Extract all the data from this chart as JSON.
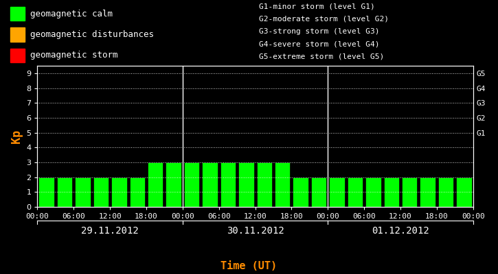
{
  "background_color": "#000000",
  "bar_color": "#00ff00",
  "bar_edge_color": "#000000",
  "text_color": "#ffffff",
  "ylabel_color": "#ff8c00",
  "xlabel_color": "#ff8c00",
  "day1_label": "29.11.2012",
  "day2_label": "30.11.2012",
  "day3_label": "01.12.2012",
  "xlabel": "Time (UT)",
  "ylabel": "Kp",
  "ylim": [
    0,
    9.5
  ],
  "yticks": [
    0,
    1,
    2,
    3,
    4,
    5,
    6,
    7,
    8,
    9
  ],
  "right_labels": [
    "G1",
    "G2",
    "G3",
    "G4",
    "G5"
  ],
  "right_label_yvals": [
    5,
    6,
    7,
    8,
    9
  ],
  "legend_items": [
    {
      "label": "geomagnetic calm",
      "color": "#00ff00"
    },
    {
      "label": "geomagnetic disturbances",
      "color": "#ffa500"
    },
    {
      "label": "geomagnetic storm",
      "color": "#ff0000"
    }
  ],
  "storm_legend": [
    "G1-minor storm (level G1)",
    "G2-moderate storm (level G2)",
    "G3-strong storm (level G3)",
    "G4-severe storm (level G4)",
    "G5-extreme storm (level G5)"
  ],
  "kp_values": [
    2,
    2,
    2,
    2,
    2,
    2,
    3,
    3,
    3,
    3,
    3,
    3,
    3,
    3,
    2,
    2,
    2,
    2,
    2,
    2,
    2,
    2,
    2,
    2
  ],
  "xtick_labels": [
    "00:00",
    "06:00",
    "12:00",
    "18:00",
    "00:00",
    "06:00",
    "12:00",
    "18:00",
    "00:00",
    "06:00",
    "12:00",
    "18:00",
    "00:00"
  ],
  "bar_width": 0.85,
  "legend_fontsize": 9,
  "storm_fontsize": 8,
  "axis_fontsize": 8,
  "ylabel_fontsize": 12
}
